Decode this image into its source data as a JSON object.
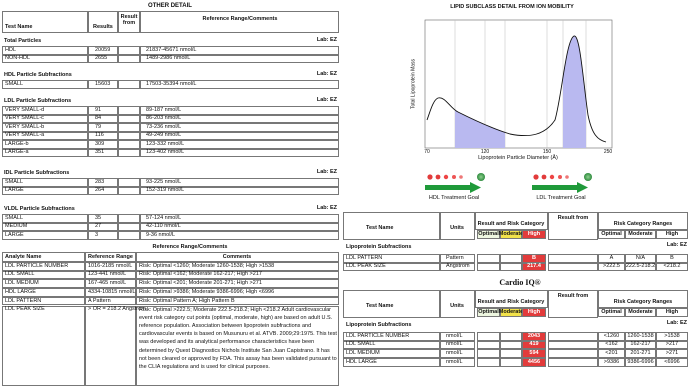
{
  "other_detail": {
    "title": "OTHER DETAIL",
    "headers": [
      "Test Name",
      "Results",
      "Result from",
      "Reference Range/Comments"
    ],
    "sections": [
      {
        "name": "Total Particles",
        "lab": "Lab: EZ",
        "rows": [
          [
            "HDL",
            20059,
            "21837-45671 nmol/L"
          ],
          [
            "NON-HDL",
            2655,
            "1489-2986 nmol/L"
          ]
        ]
      },
      {
        "name": "HDL Particle Subfractions",
        "lab": "Lab: EZ",
        "rows": [
          [
            "SMALL",
            15603,
            "17503-35394 nmol/L"
          ]
        ]
      },
      {
        "name": "LDL Particle Subfractions",
        "lab": "Lab: EZ",
        "rows": [
          [
            "VERY SMALL-d",
            91,
            "89-187 nmol/L"
          ],
          [
            "VERY SMALL-c",
            84,
            "86-203 nmol/L"
          ],
          [
            "VERY SMALL-b",
            79,
            "73-236 nmol/L"
          ],
          [
            "VERY SMALL-a",
            116,
            "49-249 nmol/L"
          ],
          [
            "LARGE-b",
            309,
            "123-332 nmol/L"
          ],
          [
            "LARGE-a",
            351,
            "123-402 nmol/L"
          ]
        ]
      },
      {
        "name": "IDL Particle Subfractions",
        "lab": "Lab: EZ",
        "rows": [
          [
            "SMALL",
            283,
            "93-225 nmol/L"
          ],
          [
            "LARGE",
            264,
            "152-319 nmol/L"
          ]
        ]
      },
      {
        "name": "VLDL Particle Subfractions",
        "lab": "Lab: EZ",
        "rows": [
          [
            "SMALL",
            35,
            "57-124 nmol/L"
          ],
          [
            "MEDIUM",
            27,
            "42-110 nmol/L"
          ],
          [
            "LARGE",
            3,
            "9-36 nmol/L"
          ]
        ]
      }
    ]
  },
  "reference": {
    "title": "Reference Range/Comments",
    "headers": [
      "Analyte Name",
      "Reference Range",
      "Comments"
    ],
    "rows": [
      [
        "LDL PARTICLE NUMBER",
        "1016-2185 nmol/L",
        "Risk: Optimal <1260; Moderate 1260-1538; High >1538"
      ],
      [
        "LDL SMALL",
        "123-441 nmol/L",
        "Risk: Optimal <162; Moderate 162-217; High >217"
      ],
      [
        "LDL MEDIUM",
        "167-465 nmol/L",
        "Risk: Optimal <201; Moderate 201-271; High >271"
      ],
      [
        "HDL LARGE",
        "4334-10815 nmol/L",
        "Risk: Optimal >9386; Moderate 9386-6996; High <6996"
      ],
      [
        "LDL PATTERN",
        "A Pattern",
        "Risk: Optimal Pattern A; High Pattern B"
      ],
      [
        "LDL PEAK SIZE",
        "> OR = 218.2 Angstrom",
        "Risk: Optimal >222.5; Moderate 222.5-218.2; High <218.2 Adult cardiovascular event risk category cut points (optimal, moderate, high) are based on adult U.S. reference population. Association between lipoprotein subfractions and cardiovascular events is based on Musunuru et al. ATVB. 2009;29:1975. This test was developed and its analytical performance characteristics have been determined by Quest Diagnostics Nichols Institute San Juan Capistrano. It has not been cleared or approved by FDA. This assay has been validated pursuant to the CLIA regulations and is used for clinical purposes."
      ]
    ]
  },
  "ion_mobility": {
    "title": "LIPID SUBCLASS DETAIL FROM ION MOBILITY",
    "y_label": "Total Lipoprotein Mass",
    "x_label": "Lipoprotein Particle Diameter (Å)",
    "x_ticks": [
      "70",
      "120",
      "150",
      "250"
    ],
    "hdl_goal": "HDL Treatment Goal",
    "ldl_goal": "LDL Treatment Goal"
  },
  "risk_tables": [
    {
      "headers": {
        "test": "Test Name",
        "units": "Units",
        "result": "Result and Risk Category",
        "optimal": "Optimal",
        "moderate": "Moderate",
        "high": "High",
        "from": "Result from",
        "ranges": "Risk Category Ranges",
        "range_optimal": "Optimal",
        "range_moderate": "Moderate",
        "range_high": "High"
      },
      "section": "Lipoprotein Subfractions",
      "lab": "Lab: EZ",
      "rows": [
        {
          "name": "LDL PATTERN",
          "units": "Pattern",
          "result": "B",
          "category": "high",
          "ranges": [
            "A",
            "N/A",
            "B"
          ]
        },
        {
          "name": "LDL PEAK SIZE",
          "units": "Angstrom",
          "result": 217.4,
          "category": "high",
          "ranges": [
            ">222.5",
            "222.5-218.2",
            "<218.2"
          ]
        }
      ]
    },
    {
      "title": "Cardio IQ®",
      "headers": {
        "test": "Test Name",
        "units": "Units",
        "result": "Result and Risk Category",
        "optimal": "Optimal",
        "moderate": "Moderate",
        "high": "High",
        "from": "Result from",
        "ranges": "Risk Category Ranges",
        "range_optimal": "Optimal",
        "range_moderate": "Moderate",
        "range_high": "High"
      },
      "section": "Lipoprotein Subfractions",
      "lab": "Lab: EZ",
      "rows": [
        {
          "name": "LDL PARTICLE NUMBER",
          "units": "nmol/L",
          "result": 2043,
          "category": "high",
          "ranges": [
            "<1260",
            "1260-1538",
            ">1538"
          ]
        },
        {
          "name": "LDL SMALL",
          "units": "nmol/L",
          "result": 419,
          "category": "high",
          "ranges": [
            "<162",
            "162-217",
            ">217"
          ]
        },
        {
          "name": "LDL MEDIUM",
          "units": "nmol/L",
          "result": 594,
          "category": "high",
          "ranges": [
            "<201",
            "201-271",
            ">271"
          ]
        },
        {
          "name": "HDL LARGE",
          "units": "nmol/L",
          "result": 4456,
          "category": "high",
          "ranges": [
            ">9386",
            "9386-6996",
            "<6996"
          ]
        }
      ]
    }
  ]
}
